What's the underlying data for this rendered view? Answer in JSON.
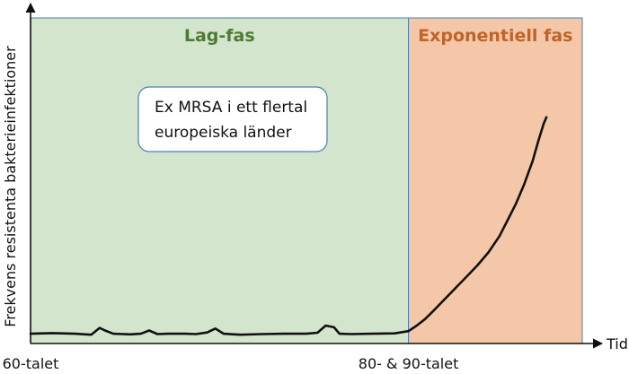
{
  "chart_data": {
    "type": "line",
    "title": "",
    "xlabel": "Tid",
    "ylabel": "Frekvens resistenta bakterieinfektioner",
    "xlim": [
      0,
      100
    ],
    "ylim": [
      0,
      100
    ],
    "grid": false,
    "legend": "none",
    "phases": [
      {
        "label": "Lag-fas",
        "x_start": 0,
        "x_end": 68.5,
        "fill": "#d3e5cc",
        "text_color": "#4e7a34"
      },
      {
        "label": "Exponentiell fas",
        "x_start": 68.5,
        "x_end": 100,
        "fill": "#f4c7a8",
        "text_color": "#c0632a"
      }
    ],
    "x_ticks": [
      {
        "label": "60-talet",
        "x": 0
      },
      {
        "label": "80- & 90-talet",
        "x": 68.5
      }
    ],
    "annotation": {
      "lines": [
        "Ex MRSA i ett flertal",
        "europeiska länder"
      ]
    },
    "series": [
      {
        "color": "#111111",
        "x": [
          0,
          4,
          8,
          11,
          12.5,
          13.5,
          15,
          18,
          20,
          21.5,
          23,
          25,
          28,
          30,
          32,
          33.5,
          35,
          38,
          42,
          46,
          50,
          52,
          53.5,
          55,
          56,
          58,
          62,
          66,
          68.5,
          70,
          71.5,
          73,
          75,
          77,
          79,
          81,
          83,
          85,
          86.5,
          88,
          89.5,
          91,
          92,
          93,
          93.5
        ],
        "y": [
          3.0,
          3.2,
          3.0,
          2.7,
          4.8,
          4.0,
          3.0,
          2.8,
          3.0,
          4.0,
          2.9,
          3.0,
          3.0,
          2.9,
          3.4,
          4.6,
          3.0,
          2.7,
          2.9,
          3.0,
          3.0,
          3.3,
          5.5,
          5.0,
          3.0,
          2.9,
          3.0,
          3.1,
          3.8,
          5.5,
          7.5,
          10,
          13.5,
          17,
          20.5,
          24,
          28,
          33,
          38,
          43,
          49,
          56,
          62,
          67.5,
          69.5
        ]
      }
    ]
  }
}
